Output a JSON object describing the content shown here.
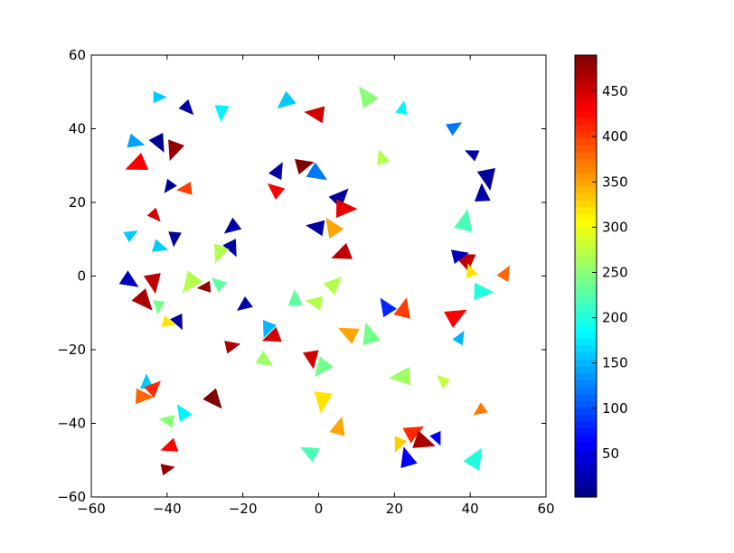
{
  "chart_data": {
    "type": "scatter",
    "marker": "triangle",
    "colormap": "jet",
    "title": "",
    "xlabel": "",
    "ylabel": "",
    "xlim": [
      -60,
      60
    ],
    "ylim": [
      -60,
      60
    ],
    "xticks": [
      -60,
      -40,
      -20,
      0,
      20,
      40,
      60
    ],
    "yticks": [
      -60,
      -40,
      -20,
      0,
      20,
      40,
      60
    ],
    "xtick_labels": [
      "−60",
      "−40",
      "−20",
      "0",
      "20",
      "40",
      "60"
    ],
    "ytick_labels": [
      "−60",
      "−40",
      "−20",
      "0",
      "20",
      "40",
      "60"
    ],
    "grid": false,
    "colorbar": {
      "min": 2,
      "max": 490,
      "ticks": [
        50,
        100,
        150,
        200,
        250,
        300,
        350,
        400,
        450
      ],
      "tick_labels": [
        "50",
        "100",
        "150",
        "200",
        "250",
        "300",
        "350",
        "400",
        "450"
      ]
    },
    "points": [
      {
        "x": -42.7,
        "y": 48.6,
        "c": 160
      },
      {
        "x": -35,
        "y": 46,
        "c": 20
      },
      {
        "x": -25.6,
        "y": 45.2,
        "c": 180
      },
      {
        "x": -8.2,
        "y": 47.8,
        "c": 160
      },
      {
        "x": 0,
        "y": 44,
        "c": 450
      },
      {
        "x": 13,
        "y": 48.1,
        "c": 250
      },
      {
        "x": 22,
        "y": 45,
        "c": 180
      },
      {
        "x": 35.3,
        "y": 40.2,
        "c": 120
      },
      {
        "x": -49,
        "y": 36.5,
        "c": 140
      },
      {
        "x": -42.4,
        "y": 36.8,
        "c": 10
      },
      {
        "x": -38,
        "y": 35,
        "c": 480
      },
      {
        "x": -47.2,
        "y": 30.6,
        "c": 430
      },
      {
        "x": 41,
        "y": 33,
        "c": 20
      },
      {
        "x": 16.8,
        "y": 31.6,
        "c": 270
      },
      {
        "x": -11,
        "y": 28,
        "c": 20
      },
      {
        "x": -4.6,
        "y": 30,
        "c": 490
      },
      {
        "x": -1,
        "y": 28.2,
        "c": 120
      },
      {
        "x": 44.5,
        "y": 27.4,
        "c": 15
      },
      {
        "x": -39.2,
        "y": 24.7,
        "c": 10
      },
      {
        "x": -34.6,
        "y": 23.7,
        "c": 400
      },
      {
        "x": -11,
        "y": 23,
        "c": 430
      },
      {
        "x": 43.2,
        "y": 21.6,
        "c": 20
      },
      {
        "x": 5.2,
        "y": 20.9,
        "c": 15
      },
      {
        "x": 6.1,
        "y": 18.3,
        "c": 440
      },
      {
        "x": -43.5,
        "y": 16.8,
        "c": 450
      },
      {
        "x": -38,
        "y": 10.9,
        "c": 15
      },
      {
        "x": -22.4,
        "y": 13.6,
        "c": 20
      },
      {
        "x": 0.1,
        "y": 13.2,
        "c": 20
      },
      {
        "x": 4,
        "y": 12.6,
        "c": 350
      },
      {
        "x": 38.4,
        "y": 14,
        "c": 220
      },
      {
        "x": -50,
        "y": 11,
        "c": 160
      },
      {
        "x": -42.5,
        "y": 8,
        "c": 160
      },
      {
        "x": -23.1,
        "y": 8.2,
        "c": 20
      },
      {
        "x": -26,
        "y": 6.9,
        "c": 270
      },
      {
        "x": 6.9,
        "y": 6.3,
        "c": 460
      },
      {
        "x": 39.2,
        "y": 4.2,
        "c": 460
      },
      {
        "x": 40.2,
        "y": 0.8,
        "c": 320
      },
      {
        "x": 49,
        "y": 0.2,
        "c": 380
      },
      {
        "x": 36.5,
        "y": 5.5,
        "c": 30
      },
      {
        "x": -50.5,
        "y": -1,
        "c": 30
      },
      {
        "x": -43.7,
        "y": -0.9,
        "c": 460
      },
      {
        "x": -33.4,
        "y": -1.2,
        "c": 270
      },
      {
        "x": -29.5,
        "y": -3,
        "c": 480
      },
      {
        "x": -26.1,
        "y": -2.4,
        "c": 230
      },
      {
        "x": -6.2,
        "y": -6.9,
        "c": 230
      },
      {
        "x": 3.6,
        "y": -2.7,
        "c": 270
      },
      {
        "x": 42.4,
        "y": -4.2,
        "c": 200
      },
      {
        "x": -46.6,
        "y": -6.1,
        "c": 470
      },
      {
        "x": -42.2,
        "y": -7.7,
        "c": 240
      },
      {
        "x": -19.2,
        "y": -7.6,
        "c": 20
      },
      {
        "x": -0.3,
        "y": -7.2,
        "c": 270
      },
      {
        "x": 18.2,
        "y": -9,
        "c": 80
      },
      {
        "x": 22.3,
        "y": -9.7,
        "c": 400
      },
      {
        "x": 35.5,
        "y": -11.2,
        "c": 430
      },
      {
        "x": -40.2,
        "y": -12.5,
        "c": 320
      },
      {
        "x": -37.2,
        "y": -11.9,
        "c": 15
      },
      {
        "x": -13.3,
        "y": -13.7,
        "c": 150
      },
      {
        "x": -11.6,
        "y": -16.3,
        "c": 450
      },
      {
        "x": 8.6,
        "y": -15.8,
        "c": 350
      },
      {
        "x": 13.6,
        "y": -16.7,
        "c": 240
      },
      {
        "x": 37.1,
        "y": -17.2,
        "c": 150
      },
      {
        "x": -23.5,
        "y": -19.1,
        "c": 470
      },
      {
        "x": -14.7,
        "y": -22.6,
        "c": 260
      },
      {
        "x": -1.9,
        "y": -21.7,
        "c": 450
      },
      {
        "x": 1.3,
        "y": -24.3,
        "c": 240
      },
      {
        "x": 22.7,
        "y": -27.3,
        "c": 260
      },
      {
        "x": 33.1,
        "y": -28.7,
        "c": 280
      },
      {
        "x": -45.4,
        "y": -29.5,
        "c": 160
      },
      {
        "x": -44,
        "y": -30.8,
        "c": 410
      },
      {
        "x": -47,
        "y": -32.7,
        "c": 380
      },
      {
        "x": -28,
        "y": -33,
        "c": 490
      },
      {
        "x": 1.1,
        "y": -33.1,
        "c": 320
      },
      {
        "x": 43,
        "y": -36.2,
        "c": 370
      },
      {
        "x": -39.3,
        "y": -39.3,
        "c": 250
      },
      {
        "x": -35.6,
        "y": -37.6,
        "c": 180
      },
      {
        "x": 5.2,
        "y": -41.7,
        "c": 350
      },
      {
        "x": 24.4,
        "y": -42.7,
        "c": 410
      },
      {
        "x": 26.9,
        "y": -44.8,
        "c": 470
      },
      {
        "x": 31.1,
        "y": -43.6,
        "c": 60
      },
      {
        "x": 21.3,
        "y": -45.1,
        "c": 330
      },
      {
        "x": -38.7,
        "y": -46.2,
        "c": 430
      },
      {
        "x": -1.7,
        "y": -48.1,
        "c": 220
      },
      {
        "x": 23.5,
        "y": -50.2,
        "c": 60
      },
      {
        "x": 41,
        "y": -50.3,
        "c": 200
      },
      {
        "x": -40.5,
        "y": -52.4,
        "c": 480
      }
    ]
  }
}
